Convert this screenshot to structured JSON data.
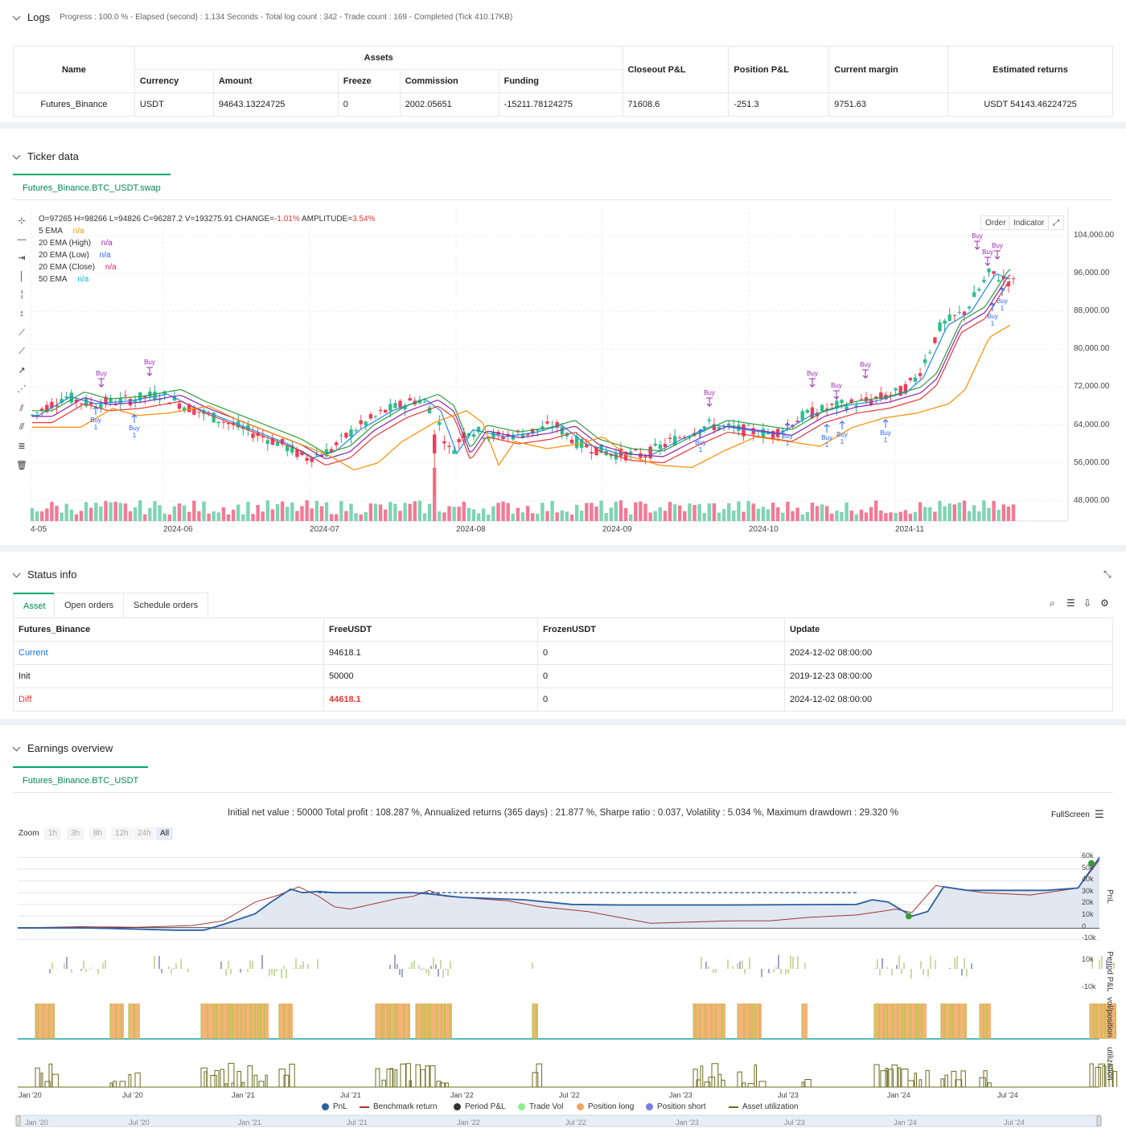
{
  "logs": {
    "title": "Logs",
    "summary": "Progress : 100.0 % - Elapsed (second) : 1.134  Seconds - Total log count : 342 - Trade count : 169 - Completed (Tick 410.17KB)",
    "headers": {
      "name": "Name",
      "assets": "Assets",
      "currency": "Currency",
      "amount": "Amount",
      "freeze": "Freeze",
      "commission": "Commission",
      "funding": "Funding",
      "closeout": "Closeout P&L",
      "position": "Position P&L",
      "margin": "Current margin",
      "returns": "Estimated returns"
    },
    "row": {
      "name": "Futures_Binance",
      "currency": "USDT",
      "amount": "94643.13224725",
      "freeze": "0",
      "commission": "2002.05651",
      "funding": "-15211.78124275",
      "closeout": "71608.6",
      "position": "-251.3",
      "margin": "9751.63",
      "returns": "USDT 54143.46224725"
    }
  },
  "ticker": {
    "title": "Ticker data",
    "tab": "Futures_Binance.BTC_USDT.swap",
    "ohlc": {
      "o": "O=97265",
      "h": "H=98266",
      "l": "L=94826",
      "c": "C=96287.2",
      "v": "V=193275.91",
      "change_label": "CHANGE=",
      "change": "-1.01%",
      "amp_label": "AMPLITUDE=",
      "amp": "3.54%"
    },
    "legend": [
      {
        "name": "5 EMA",
        "value": "n/a",
        "color": "#ff9800"
      },
      {
        "name": "20 EMA (High)",
        "value": "n/a",
        "color": "#9c27b0"
      },
      {
        "name": "20 EMA (Low)",
        "value": "n/a",
        "color": "#2962ff"
      },
      {
        "name": "20 EMA (Close)",
        "value": "n/a",
        "color": "#e91e63"
      },
      {
        "name": "50 EMA",
        "value": "n/a",
        "color": "#00bcd4"
      }
    ],
    "buttons": {
      "order": "Order",
      "indicator": "Indicator"
    },
    "y_ticks": [
      "104,000.00",
      "96,000.00",
      "88,000.00",
      "80,000.00",
      "72,000.00",
      "64,000.00",
      "56,000.00",
      "48,000.00"
    ],
    "x_ticks": [
      "4-05",
      "2024-06",
      "2024-07",
      "2024-08",
      "2024-09",
      "2024-10",
      "2024-11"
    ],
    "marker_buy": "Buy",
    "marker_qty": "1"
  },
  "status": {
    "title": "Status info",
    "tabs": [
      "Asset",
      "Open orders",
      "Schedule orders"
    ],
    "headers": [
      "Futures_Binance",
      "FreeUSDT",
      "FrozenUSDT",
      "Update"
    ],
    "rows": [
      {
        "label": "Current",
        "free": "94618.1",
        "frozen": "0",
        "update": "2024-12-02 08:00:00",
        "color": "#1a73e8"
      },
      {
        "label": "Init",
        "free": "50000",
        "frozen": "0",
        "update": "2019-12-23 08:00:00",
        "color": "#222"
      },
      {
        "label": "Diff",
        "free": "44618.1",
        "frozen": "0",
        "update": "2024-12-02 08:00:00",
        "color": "#e53935"
      }
    ]
  },
  "earnings": {
    "title": "Earnings overview",
    "tab": "Futures_Binance.BTC_USDT",
    "summary": "Initial net value : 50000 Total profit : 108.287 %, Annualized returns (365 days) : 21.877 %, Sharpe ratio : 0.037, Volatility : 5.034 %, Maximum drawdown : 29.320 %",
    "fullscreen": "FullScreen",
    "zoom_label": "Zoom",
    "zoom_options": [
      "1h",
      "3h",
      "8h",
      "12h",
      "24h",
      "All"
    ],
    "pnl_ticks": [
      "60k",
      "50k",
      "40k",
      "30k",
      "20k",
      "10k",
      "0",
      "-10k"
    ],
    "period_ticks": [
      "10k",
      "-10k"
    ],
    "axis_labels": {
      "pnl": "PnL",
      "period": "Period P&L",
      "vol": "vol/position",
      "util": "utilization"
    },
    "time_ticks": [
      "Jan '20",
      "Jul '20",
      "Jan '21",
      "Jul '21",
      "Jan '22",
      "Jul '22",
      "Jan '23",
      "Jul '23",
      "Jan '24",
      "Jul '24"
    ],
    "legend": [
      {
        "name": "PnL",
        "color": "#2b5fa3",
        "type": "dot"
      },
      {
        "name": "Benchmark return",
        "color": "#b03030",
        "type": "line"
      },
      {
        "name": "Period P&L",
        "color": "#333333",
        "type": "dot"
      },
      {
        "name": "Trade Vol",
        "color": "#90ee90",
        "type": "dot"
      },
      {
        "name": "Position long",
        "color": "#f4a460",
        "type": "dot"
      },
      {
        "name": "Position short",
        "color": "#7b7bea",
        "type": "dot"
      },
      {
        "name": "Asset utilization",
        "color": "#6b6b1e",
        "type": "line"
      }
    ]
  }
}
